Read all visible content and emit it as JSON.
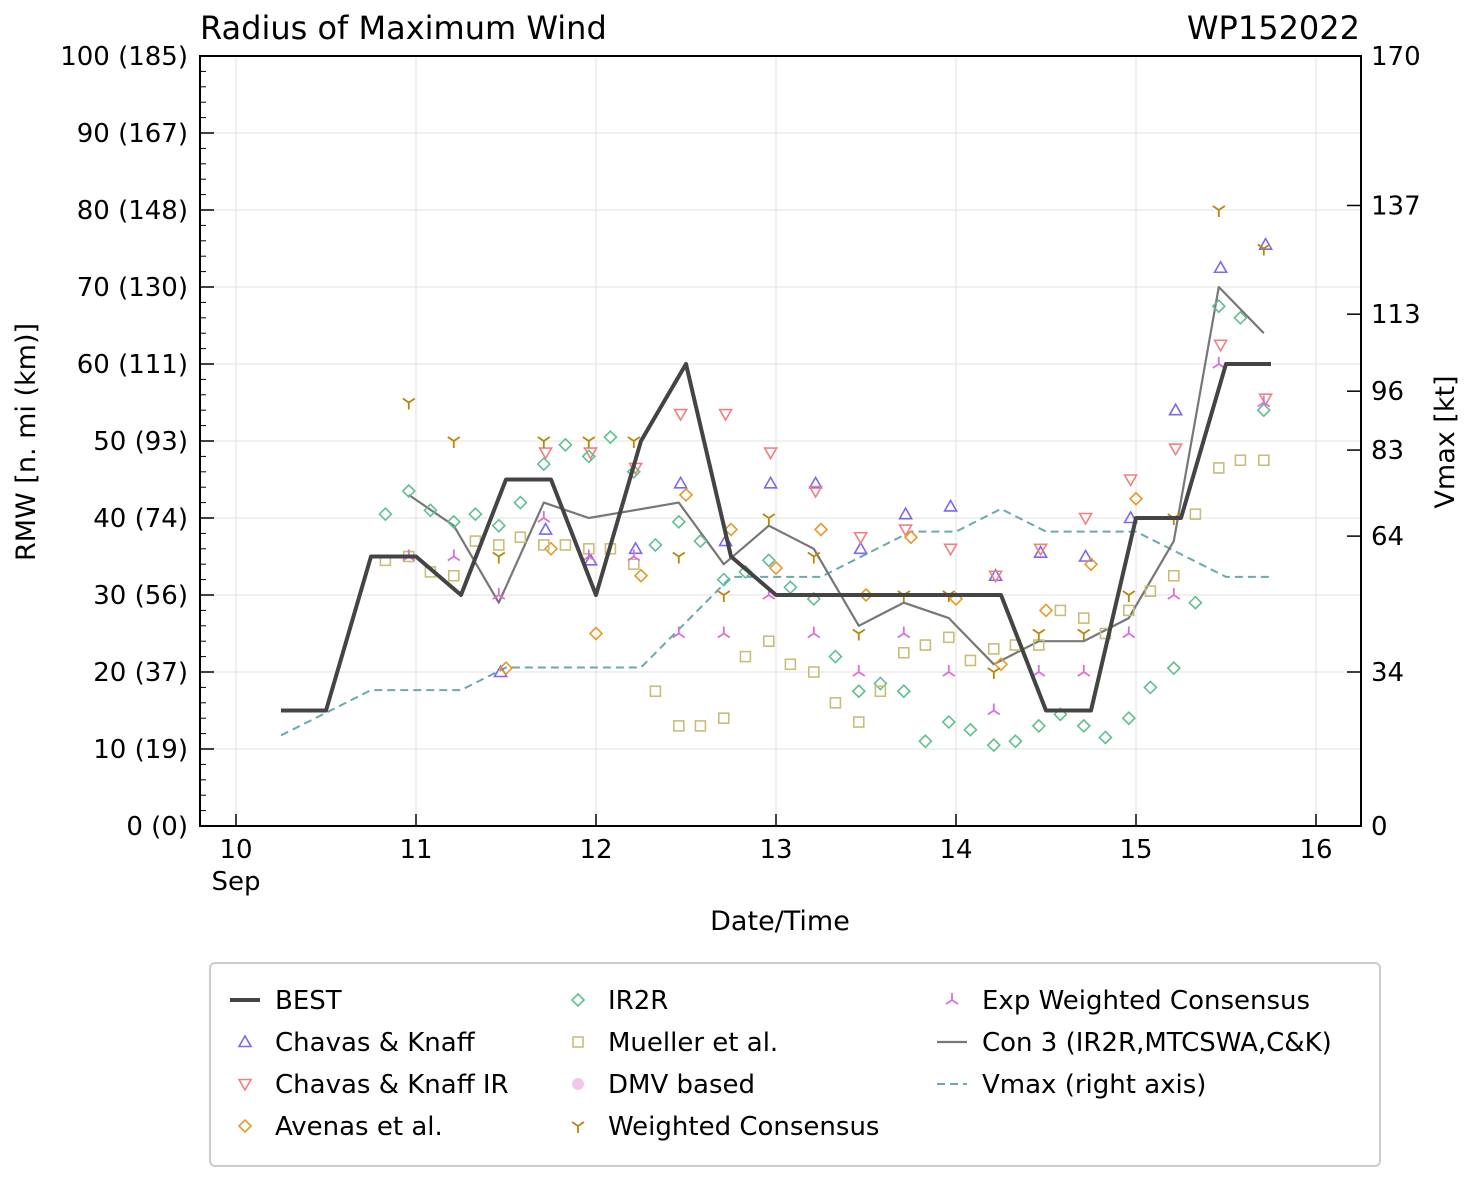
{
  "chart_data": {
    "type": "line",
    "title": "Radius of Maximum Wind",
    "storm_id": "WP152022",
    "xlabel": "Date/Time",
    "ylabel": "RMW [n. mi (km)]",
    "y2label": "Vmax [kt]",
    "xlim": [
      9.8,
      16.25
    ],
    "ylim": [
      0,
      100
    ],
    "y2lim": [
      0,
      170
    ],
    "x_ticks": [
      {
        "value": 10,
        "label": "10",
        "sublabel": "Sep"
      },
      {
        "value": 11,
        "label": "11",
        "sublabel": ""
      },
      {
        "value": 12,
        "label": "12",
        "sublabel": ""
      },
      {
        "value": 13,
        "label": "13",
        "sublabel": ""
      },
      {
        "value": 14,
        "label": "14",
        "sublabel": ""
      },
      {
        "value": 15,
        "label": "15",
        "sublabel": ""
      },
      {
        "value": 16,
        "label": "16",
        "sublabel": ""
      }
    ],
    "y_ticks": [
      {
        "value": 0,
        "label": "0 (0)"
      },
      {
        "value": 10,
        "label": "10 (19)"
      },
      {
        "value": 20,
        "label": "20 (37)"
      },
      {
        "value": 30,
        "label": "30 (56)"
      },
      {
        "value": 40,
        "label": "40 (74)"
      },
      {
        "value": 50,
        "label": "50 (93)"
      },
      {
        "value": 60,
        "label": "60 (111)"
      },
      {
        "value": 70,
        "label": "70 (130)"
      },
      {
        "value": 80,
        "label": "80 (148)"
      },
      {
        "value": 90,
        "label": "90 (167)"
      },
      {
        "value": 100,
        "label": "100 (185)"
      }
    ],
    "y2_ticks": [
      {
        "value": 0,
        "label": "0"
      },
      {
        "value": 34,
        "label": "34"
      },
      {
        "value": 64,
        "label": "64"
      },
      {
        "value": 83,
        "label": "83"
      },
      {
        "value": 96,
        "label": "96"
      },
      {
        "value": 113,
        "label": "113"
      },
      {
        "value": 137,
        "label": "137"
      },
      {
        "value": 170,
        "label": "170"
      }
    ],
    "grid": true,
    "legend_position": "bottom",
    "series": [
      {
        "name": "BEST",
        "kind": "line",
        "color": "#444444",
        "width": 4,
        "axis": "left",
        "points": [
          [
            10.25,
            15
          ],
          [
            10.5,
            15
          ],
          [
            10.75,
            35
          ],
          [
            11.0,
            35
          ],
          [
            11.25,
            30
          ],
          [
            11.5,
            45
          ],
          [
            11.75,
            45
          ],
          [
            12.0,
            30
          ],
          [
            12.25,
            50
          ],
          [
            12.5,
            60
          ],
          [
            12.75,
            35
          ],
          [
            13.0,
            30
          ],
          [
            13.25,
            30
          ],
          [
            13.5,
            30
          ],
          [
            13.75,
            30
          ],
          [
            14.0,
            30
          ],
          [
            14.25,
            30
          ],
          [
            14.5,
            15
          ],
          [
            14.75,
            15
          ],
          [
            15.0,
            40
          ],
          [
            15.25,
            40
          ],
          [
            15.5,
            60
          ],
          [
            15.75,
            60
          ]
        ]
      },
      {
        "name": "Chavas & Knaff",
        "kind": "marker",
        "marker": "triangle-up",
        "color": "#7b68ee",
        "axis": "left",
        "points": [
          [
            11.47,
            20
          ],
          [
            11.72,
            38.5
          ],
          [
            11.97,
            34.5
          ],
          [
            12.22,
            36
          ],
          [
            12.47,
            44.5
          ],
          [
            12.72,
            37
          ],
          [
            12.97,
            44.5
          ],
          [
            13.22,
            44.5
          ],
          [
            13.47,
            36
          ],
          [
            13.72,
            40.5
          ],
          [
            13.97,
            41.5
          ],
          [
            14.22,
            32.5
          ],
          [
            14.47,
            35.5
          ],
          [
            14.72,
            35
          ],
          [
            14.97,
            40
          ],
          [
            15.22,
            54
          ],
          [
            15.47,
            72.5
          ],
          [
            15.72,
            75.5
          ]
        ]
      },
      {
        "name": "Chavas & Knaff IR",
        "kind": "marker",
        "marker": "triangle-down",
        "color": "#f08080",
        "axis": "left",
        "points": [
          [
            11.72,
            48.5
          ],
          [
            11.97,
            48.5
          ],
          [
            12.22,
            46.5
          ],
          [
            12.47,
            53.5
          ],
          [
            12.72,
            53.5
          ],
          [
            12.97,
            48.5
          ],
          [
            13.22,
            43.5
          ],
          [
            13.47,
            37.5
          ],
          [
            13.72,
            38.5
          ],
          [
            13.97,
            36
          ],
          [
            14.22,
            32.5
          ],
          [
            14.47,
            36
          ],
          [
            14.72,
            40
          ],
          [
            14.97,
            45
          ],
          [
            15.22,
            49
          ],
          [
            15.47,
            62.5
          ],
          [
            15.72,
            55.5
          ]
        ]
      },
      {
        "name": "Avenas et al.",
        "kind": "marker",
        "marker": "diamond",
        "color": "#e69a28",
        "axis": "left",
        "points": [
          [
            11.5,
            20.5
          ],
          [
            11.75,
            36
          ],
          [
            12.0,
            25
          ],
          [
            12.25,
            32.5
          ],
          [
            12.5,
            43
          ],
          [
            12.75,
            38.5
          ],
          [
            13.0,
            33.5
          ],
          [
            13.25,
            38.5
          ],
          [
            13.5,
            30
          ],
          [
            13.75,
            37.5
          ],
          [
            14.0,
            29.5
          ],
          [
            14.25,
            21
          ],
          [
            14.5,
            28
          ],
          [
            14.75,
            34
          ],
          [
            15.0,
            42.5
          ]
        ]
      },
      {
        "name": "IR2R",
        "kind": "marker",
        "marker": "diamond",
        "color": "#5fbf8f",
        "axis": "left",
        "points": [
          [
            10.83,
            40.5
          ],
          [
            10.96,
            43.5
          ],
          [
            11.08,
            41
          ],
          [
            11.21,
            39.5
          ],
          [
            11.33,
            40.5
          ],
          [
            11.46,
            39
          ],
          [
            11.58,
            42
          ],
          [
            11.71,
            47
          ],
          [
            11.83,
            49.5
          ],
          [
            11.96,
            48
          ],
          [
            12.08,
            50.5
          ],
          [
            12.21,
            46
          ],
          [
            12.33,
            36.5
          ],
          [
            12.46,
            39.5
          ],
          [
            12.58,
            37
          ],
          [
            12.71,
            32
          ],
          [
            12.83,
            33
          ],
          [
            12.96,
            34.5
          ],
          [
            13.08,
            31
          ],
          [
            13.21,
            29.5
          ],
          [
            13.33,
            22
          ],
          [
            13.46,
            17.5
          ],
          [
            13.58,
            18.5
          ],
          [
            13.71,
            17.5
          ],
          [
            13.83,
            11
          ],
          [
            13.96,
            13.5
          ],
          [
            14.08,
            12.5
          ],
          [
            14.21,
            10.5
          ],
          [
            14.33,
            11
          ],
          [
            14.46,
            13
          ],
          [
            14.58,
            14.5
          ],
          [
            14.71,
            13
          ],
          [
            14.83,
            11.5
          ],
          [
            14.96,
            14
          ],
          [
            15.08,
            18
          ],
          [
            15.21,
            20.5
          ],
          [
            15.33,
            29
          ],
          [
            15.46,
            67.5
          ],
          [
            15.58,
            66
          ],
          [
            15.71,
            54
          ]
        ]
      },
      {
        "name": "Mueller et al.",
        "kind": "marker",
        "marker": "square",
        "color": "#c9bd7a",
        "axis": "left",
        "points": [
          [
            10.83,
            34.5
          ],
          [
            10.96,
            35
          ],
          [
            11.08,
            33
          ],
          [
            11.21,
            32.5
          ],
          [
            11.33,
            37
          ],
          [
            11.46,
            36.5
          ],
          [
            11.58,
            37.5
          ],
          [
            11.71,
            36.5
          ],
          [
            11.83,
            36.5
          ],
          [
            11.96,
            36
          ],
          [
            12.08,
            36
          ],
          [
            12.21,
            34
          ],
          [
            12.33,
            17.5
          ],
          [
            12.46,
            13
          ],
          [
            12.58,
            13
          ],
          [
            12.71,
            14
          ],
          [
            12.83,
            22
          ],
          [
            12.96,
            24
          ],
          [
            13.08,
            21
          ],
          [
            13.21,
            20
          ],
          [
            13.33,
            16
          ],
          [
            13.46,
            13.5
          ],
          [
            13.58,
            17.5
          ],
          [
            13.71,
            22.5
          ],
          [
            13.83,
            23.5
          ],
          [
            13.96,
            24.5
          ],
          [
            14.08,
            21.5
          ],
          [
            14.21,
            23
          ],
          [
            14.33,
            23.5
          ],
          [
            14.46,
            23.5
          ],
          [
            14.58,
            28
          ],
          [
            14.71,
            27
          ],
          [
            14.83,
            25
          ],
          [
            14.96,
            28
          ],
          [
            15.08,
            30.5
          ],
          [
            15.21,
            32.5
          ],
          [
            15.33,
            40.5
          ],
          [
            15.46,
            46.5
          ],
          [
            15.58,
            47.5
          ],
          [
            15.71,
            47.5
          ]
        ]
      },
      {
        "name": "DMV based",
        "kind": "marker",
        "marker": "circle",
        "color": "#f2c7ec",
        "axis": "left",
        "points": []
      },
      {
        "name": "Weighted Consensus",
        "kind": "marker",
        "marker": "tri-down",
        "color": "#b8860b",
        "axis": "left",
        "points": [
          [
            10.96,
            55
          ],
          [
            11.21,
            50
          ],
          [
            11.46,
            35
          ],
          [
            11.71,
            50
          ],
          [
            11.96,
            50
          ],
          [
            12.21,
            50
          ],
          [
            12.46,
            35
          ],
          [
            12.71,
            30
          ],
          [
            12.96,
            40
          ],
          [
            13.21,
            35
          ],
          [
            13.46,
            25
          ],
          [
            13.71,
            30
          ],
          [
            13.96,
            30
          ],
          [
            14.21,
            20
          ],
          [
            14.46,
            25
          ],
          [
            14.71,
            25
          ],
          [
            14.96,
            30
          ],
          [
            15.21,
            40
          ],
          [
            15.46,
            80
          ],
          [
            15.71,
            75
          ]
        ]
      },
      {
        "name": "Exp Weighted Consensus",
        "kind": "marker",
        "marker": "tri-up",
        "color": "#da70d6",
        "axis": "left",
        "points": [
          [
            10.96,
            35
          ],
          [
            11.21,
            35
          ],
          [
            11.46,
            30
          ],
          [
            11.71,
            40
          ],
          [
            11.96,
            35
          ],
          [
            12.21,
            35
          ],
          [
            12.46,
            25
          ],
          [
            12.71,
            25
          ],
          [
            12.96,
            30
          ],
          [
            13.21,
            25
          ],
          [
            13.46,
            20
          ],
          [
            13.71,
            25
          ],
          [
            13.96,
            20
          ],
          [
            14.21,
            15
          ],
          [
            14.46,
            20
          ],
          [
            14.71,
            20
          ],
          [
            14.96,
            25
          ],
          [
            15.21,
            30
          ],
          [
            15.46,
            60
          ],
          [
            15.71,
            55
          ]
        ]
      },
      {
        "name": "Con 3 (IR2R,MTCSWA,C&K)",
        "kind": "line",
        "color": "#777777",
        "width": 2.2,
        "axis": "left",
        "points": [
          [
            10.96,
            43
          ],
          [
            11.21,
            39
          ],
          [
            11.46,
            29
          ],
          [
            11.71,
            42
          ],
          [
            11.96,
            40
          ],
          [
            12.21,
            41
          ],
          [
            12.46,
            42
          ],
          [
            12.71,
            34
          ],
          [
            12.96,
            39
          ],
          [
            13.21,
            36
          ],
          [
            13.46,
            26
          ],
          [
            13.71,
            29
          ],
          [
            13.96,
            27
          ],
          [
            14.21,
            21
          ],
          [
            14.46,
            24
          ],
          [
            14.71,
            24
          ],
          [
            14.96,
            27
          ],
          [
            15.21,
            37
          ],
          [
            15.46,
            70
          ],
          [
            15.71,
            64
          ]
        ]
      },
      {
        "name": "Vmax (right axis)",
        "kind": "dashed",
        "color": "#6aa9ae",
        "width": 2,
        "axis": "right",
        "points": [
          [
            10.25,
            20
          ],
          [
            10.5,
            25
          ],
          [
            10.75,
            30
          ],
          [
            11.0,
            30
          ],
          [
            11.25,
            30
          ],
          [
            11.5,
            35
          ],
          [
            11.75,
            35
          ],
          [
            12.0,
            35
          ],
          [
            12.25,
            35
          ],
          [
            12.5,
            45
          ],
          [
            12.75,
            55
          ],
          [
            13.0,
            55
          ],
          [
            13.25,
            55
          ],
          [
            13.5,
            60
          ],
          [
            13.75,
            65
          ],
          [
            14.0,
            65
          ],
          [
            14.25,
            70
          ],
          [
            14.5,
            65
          ],
          [
            14.75,
            65
          ],
          [
            15.0,
            65
          ],
          [
            15.25,
            60
          ],
          [
            15.5,
            55
          ],
          [
            15.75,
            55
          ]
        ]
      }
    ],
    "legend": [
      {
        "label": "BEST",
        "series": 0
      },
      {
        "label": "Chavas & Knaff",
        "series": 1
      },
      {
        "label": "Chavas & Knaff IR",
        "series": 2
      },
      {
        "label": "Avenas et al.",
        "series": 3
      },
      {
        "label": "IR2R",
        "series": 4
      },
      {
        "label": "Mueller et al.",
        "series": 5
      },
      {
        "label": "DMV based",
        "series": 6
      },
      {
        "label": "Weighted Consensus",
        "series": 7
      },
      {
        "label": "Exp Weighted Consensus",
        "series": 8
      },
      {
        "label": "Con 3 (IR2R,MTCSWA,C&K)",
        "series": 9
      },
      {
        "label": "Vmax (right axis)",
        "series": 10
      }
    ]
  }
}
